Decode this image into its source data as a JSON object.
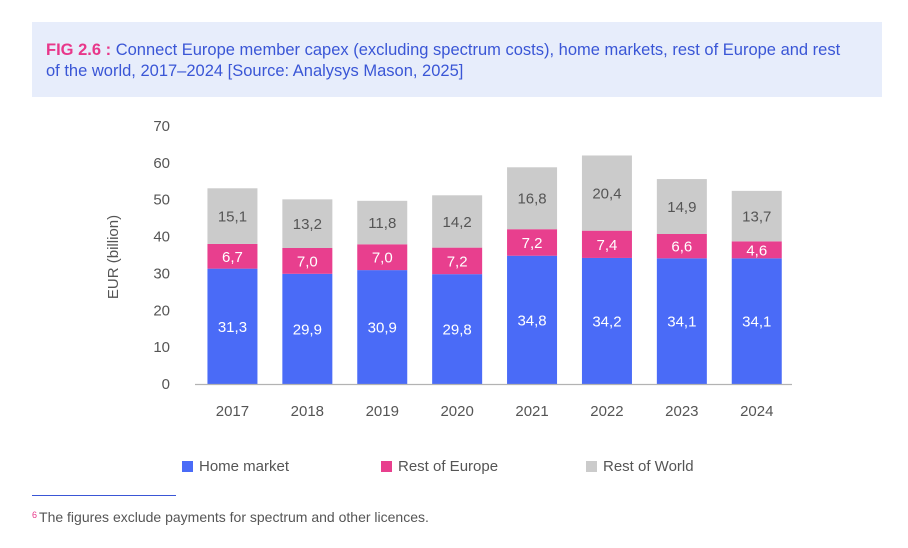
{
  "header": {
    "fig_label": "FIG 2.6 :",
    "title": " Connect Europe member capex (excluding spectrum costs), home markets, rest of Europe and rest of the world, 2017–2024  [Source: Analysys Mason, 2025]"
  },
  "chart_data": {
    "type": "bar",
    "stacked": true,
    "ylabel": "EUR (billion)",
    "ylim": [
      0,
      70
    ],
    "yticks": [
      "0",
      "10",
      "20",
      "30",
      "40",
      "50",
      "60",
      "70"
    ],
    "categories": [
      "2017",
      "2018",
      "2019",
      "2020",
      "2021",
      "2022",
      "2023",
      "2024"
    ],
    "series": [
      {
        "name": "Home market",
        "color": "#4a6bf7",
        "label_color": "#ffffff",
        "values": [
          31.3,
          29.9,
          30.9,
          29.8,
          34.8,
          34.2,
          34.1,
          34.1
        ],
        "labels": [
          "31,3",
          "29,9",
          "30,9",
          "29,8",
          "34,8",
          "34,2",
          "34,1",
          "34,1"
        ]
      },
      {
        "name": "Rest of Europe",
        "color": "#e83f8e",
        "label_color": "#ffffff",
        "values": [
          6.7,
          7.0,
          7.0,
          7.2,
          7.2,
          7.4,
          6.6,
          4.6
        ],
        "labels": [
          "6,7",
          "7,0",
          "7,0",
          "7,2",
          "7,2",
          "7,4",
          "6,6",
          "4,6"
        ]
      },
      {
        "name": "Rest of World",
        "color": "#cbcbcb",
        "label_color": "#555555",
        "values": [
          15.1,
          13.2,
          11.8,
          14.2,
          16.8,
          20.4,
          14.9,
          13.7
        ],
        "labels": [
          "15,1",
          "13,2",
          "11,8",
          "14,2",
          "16,8",
          "20,4",
          "14,9",
          "13,7"
        ]
      }
    ]
  },
  "footnote": {
    "marker": "6",
    "text": "The figures exclude payments for spectrum and other licences."
  }
}
